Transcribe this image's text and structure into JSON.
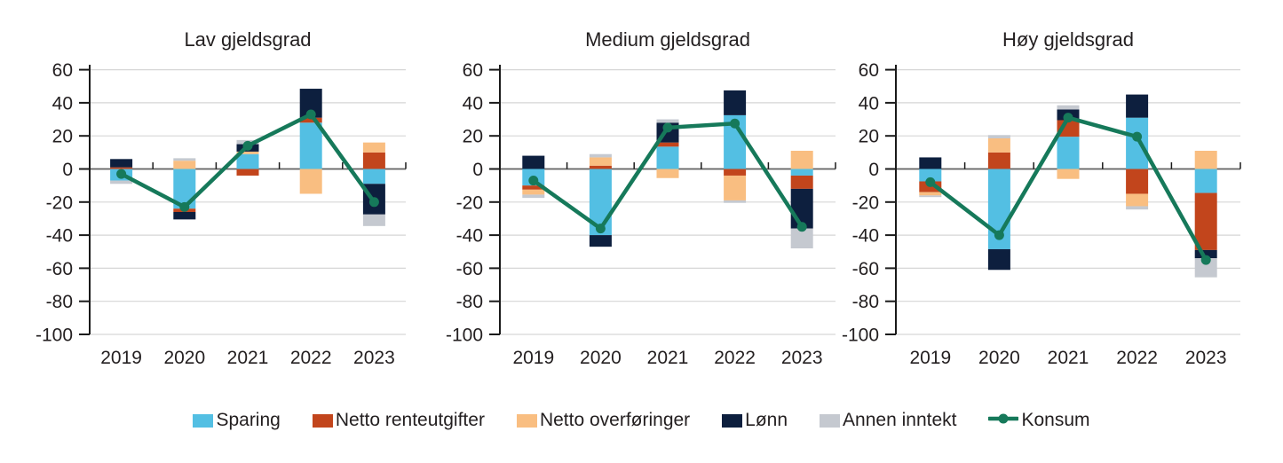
{
  "figure": {
    "type": "three-panel stacked bar chart with line overlay",
    "panel_titles": [
      "Lav gjeldsgrad",
      "Medium gjeldsgrad",
      "Høy gjeldsgrad"
    ]
  },
  "colors": {
    "sparing": "#53BFE3",
    "renteutgifter": "#C2451C",
    "overforinger": "#F9BE81",
    "lonn": "#0D1F3E",
    "annen": "#C5C9D0",
    "konsum": "#16795A",
    "grid": "#D6D6D6",
    "zero_line": "#606060",
    "axis": "#1A1A1A",
    "text": "#231F20"
  },
  "legend": {
    "items": [
      {
        "label": "Sparing",
        "key": "sparing",
        "marker": "rect"
      },
      {
        "label": "Netto renteutgifter",
        "key": "renteutgifter",
        "marker": "rect"
      },
      {
        "label": "Netto overføringer",
        "key": "overforinger",
        "marker": "rect"
      },
      {
        "label": "Lønn",
        "key": "lonn",
        "marker": "rect"
      },
      {
        "label": "Annen inntekt",
        "key": "annen",
        "marker": "rect"
      },
      {
        "label": "Konsum",
        "key": "konsum",
        "marker": "line-dot"
      }
    ]
  },
  "chart_data": [
    {
      "type": "bar",
      "subtype": "stacked-bar-with-line",
      "title": "Lav gjeldsgrad",
      "categories": [
        "2019",
        "2020",
        "2021",
        "2022",
        "2023"
      ],
      "series": [
        {
          "name": "Sparing",
          "key": "sparing",
          "values": [
            -7,
            -24,
            9,
            28,
            -9
          ]
        },
        {
          "name": "Netto renteutgifter",
          "key": "renteutgifter",
          "values": [
            1,
            -2,
            -4,
            3,
            10
          ]
        },
        {
          "name": "Netto overføringer",
          "key": "overforinger",
          "values": [
            0,
            5,
            1.5,
            -15,
            6
          ]
        },
        {
          "name": "Lønn",
          "key": "lonn",
          "values": [
            5,
            -4.5,
            4.5,
            17.5,
            -18.5
          ]
        },
        {
          "name": "Annen inntekt",
          "key": "annen",
          "values": [
            -2,
            1.5,
            2.5,
            0,
            -7
          ]
        }
      ],
      "line_series": {
        "name": "Konsum",
        "key": "konsum",
        "values": [
          -3,
          -23,
          14,
          33,
          -20
        ]
      },
      "ylim": [
        -100,
        63
      ],
      "yticks": [
        60,
        40,
        20,
        0,
        -20,
        -40,
        -60,
        -80,
        -100
      ],
      "grid": "horizontal",
      "legend_position": "bottom-shared"
    },
    {
      "type": "bar",
      "subtype": "stacked-bar-with-line",
      "title": "Medium gjeldsgrad",
      "categories": [
        "2019",
        "2020",
        "2021",
        "2022",
        "2023"
      ],
      "series": [
        {
          "name": "Sparing",
          "key": "sparing",
          "values": [
            -10,
            -40,
            13.5,
            32.5,
            -4
          ]
        },
        {
          "name": "Netto renteutgifter",
          "key": "renteutgifter",
          "values": [
            -2.5,
            2,
            2.5,
            -4,
            -8
          ]
        },
        {
          "name": "Netto overføringer",
          "key": "overforinger",
          "values": [
            -3,
            5,
            -5.5,
            -15,
            11
          ]
        },
        {
          "name": "Lønn",
          "key": "lonn",
          "values": [
            8,
            -7,
            12,
            15,
            -24
          ]
        },
        {
          "name": "Annen inntekt",
          "key": "annen",
          "values": [
            -2,
            2,
            2,
            -1.5,
            -12
          ]
        }
      ],
      "line_series": {
        "name": "Konsum",
        "key": "konsum",
        "values": [
          -7,
          -36,
          25,
          27.5,
          -35
        ]
      },
      "ylim": [
        -100,
        63
      ],
      "yticks": [
        60,
        40,
        20,
        0,
        -20,
        -40,
        -60,
        -80,
        -100
      ],
      "grid": "horizontal",
      "legend_position": "bottom-shared"
    },
    {
      "type": "bar",
      "subtype": "stacked-bar-with-line",
      "title": "Høy gjeldsgrad",
      "categories": [
        "2019",
        "2020",
        "2021",
        "2022",
        "2023"
      ],
      "series": [
        {
          "name": "Sparing",
          "key": "sparing",
          "values": [
            -7.5,
            -48.5,
            19.5,
            31,
            -14.5
          ]
        },
        {
          "name": "Netto renteutgifter",
          "key": "renteutgifter",
          "values": [
            -6.5,
            10,
            10,
            -15,
            -34.5
          ]
        },
        {
          "name": "Netto overføringer",
          "key": "overforinger",
          "values": [
            -2,
            8.5,
            -6,
            -7.5,
            11
          ]
        },
        {
          "name": "Lønn",
          "key": "lonn",
          "values": [
            7,
            -12.5,
            6.5,
            14,
            -5
          ]
        },
        {
          "name": "Annen inntekt",
          "key": "annen",
          "values": [
            -1,
            2,
            2.5,
            -2,
            -11.5
          ]
        }
      ],
      "line_series": {
        "name": "Konsum",
        "key": "konsum",
        "values": [
          -8,
          -40,
          31,
          19.5,
          -55
        ]
      },
      "ylim": [
        -100,
        63
      ],
      "yticks": [
        60,
        40,
        20,
        0,
        -20,
        -40,
        -60,
        -80,
        -100
      ],
      "grid": "horizontal",
      "legend_position": "bottom-shared"
    }
  ]
}
